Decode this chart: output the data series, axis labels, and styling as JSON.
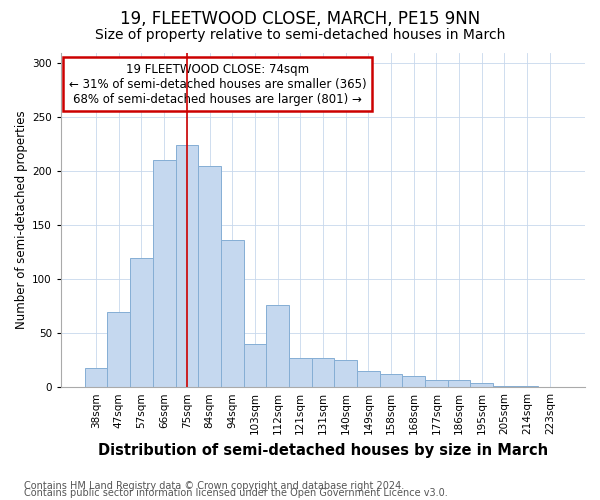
{
  "title": "19, FLEETWOOD CLOSE, MARCH, PE15 9NN",
  "subtitle": "Size of property relative to semi-detached houses in March",
  "xlabel": "Distribution of semi-detached houses by size in March",
  "ylabel": "Number of semi-detached properties",
  "categories": [
    "38sqm",
    "47sqm",
    "57sqm",
    "66sqm",
    "75sqm",
    "84sqm",
    "94sqm",
    "103sqm",
    "112sqm",
    "121sqm",
    "131sqm",
    "140sqm",
    "149sqm",
    "158sqm",
    "168sqm",
    "177sqm",
    "186sqm",
    "195sqm",
    "205sqm",
    "214sqm",
    "223sqm"
  ],
  "values": [
    18,
    70,
    120,
    210,
    224,
    205,
    136,
    40,
    76,
    27,
    27,
    25,
    15,
    12,
    10,
    7,
    7,
    4,
    1,
    1,
    0
  ],
  "bar_color": "#c5d8ef",
  "bar_edge_color": "#85aed4",
  "highlight_index": 4,
  "highlight_line_color": "#cc0000",
  "annotation_text": "19 FLEETWOOD CLOSE: 74sqm\n← 31% of semi-detached houses are smaller (365)\n68% of semi-detached houses are larger (801) →",
  "annotation_box_color": "#ffffff",
  "annotation_box_edge_color": "#cc0000",
  "ylim": [
    0,
    310
  ],
  "yticks": [
    0,
    50,
    100,
    150,
    200,
    250,
    300
  ],
  "footer_line1": "Contains HM Land Registry data © Crown copyright and database right 2024.",
  "footer_line2": "Contains public sector information licensed under the Open Government Licence v3.0.",
  "background_color": "#ffffff",
  "plot_background_color": "#ffffff",
  "title_fontsize": 12,
  "subtitle_fontsize": 10,
  "xlabel_fontsize": 10.5,
  "ylabel_fontsize": 8.5,
  "tick_fontsize": 7.5,
  "annotation_fontsize": 8.5,
  "footer_fontsize": 7
}
